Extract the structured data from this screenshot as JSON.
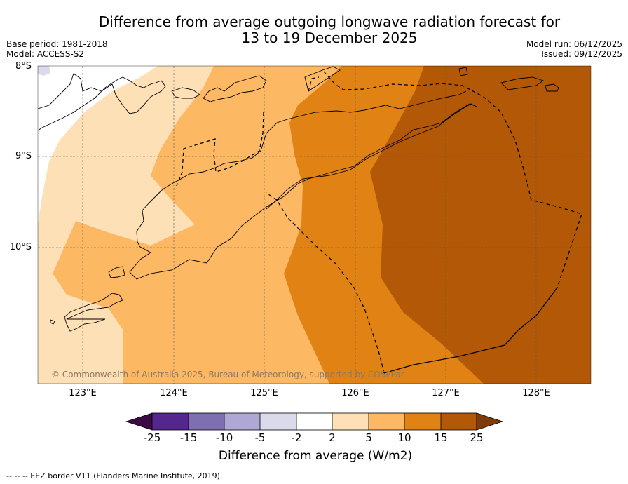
{
  "title_line1": "Difference from average outgoing longwave radiation forecast for",
  "title_line2": "13 to 19 December 2025",
  "base_period": "Base period: 1981-2018",
  "model": "Model: ACCESS-S2",
  "model_run": "Model run: 06/12/2025",
  "issued": "Issued: 09/12/2025",
  "copyright": "© Commonwealth of Australia 2025, Bureau of Meteorology, supported by COSPPac",
  "footnote": "--  --  -- EEZ border V11 (Flanders Marine Institute, 2019).",
  "colors": {
    "n25": "#3b0a45",
    "n15": "#54278f",
    "n10": "#7e70b0",
    "n5": "#b0a8d4",
    "n2": "#dadaeb",
    "neutral": "#ffffff",
    "p2": "#fee0b6",
    "p5": "#fdb863",
    "p10": "#e08214",
    "p15": "#b35806",
    "p25": "#7f3b08"
  },
  "chart_data": {
    "type": "map-contour",
    "title": "Difference from average outgoing longwave radiation forecast for 13 to 19 December 2025",
    "lat_ticks": [
      "8°S",
      "9°S",
      "10°S"
    ],
    "lon_ticks": [
      "123°E",
      "124°E",
      "125°E",
      "126°E",
      "127°E",
      "128°E"
    ],
    "lat_range": [
      -11.5,
      -8.0
    ],
    "lon_range": [
      122.5,
      128.6
    ],
    "colorbar": {
      "title": "Difference from average (W/m2)",
      "boundaries": [
        "-25",
        "-15",
        "-10",
        "-5",
        "-2",
        "2",
        "5",
        "10",
        "15",
        "25"
      ],
      "extend": "both"
    }
  }
}
